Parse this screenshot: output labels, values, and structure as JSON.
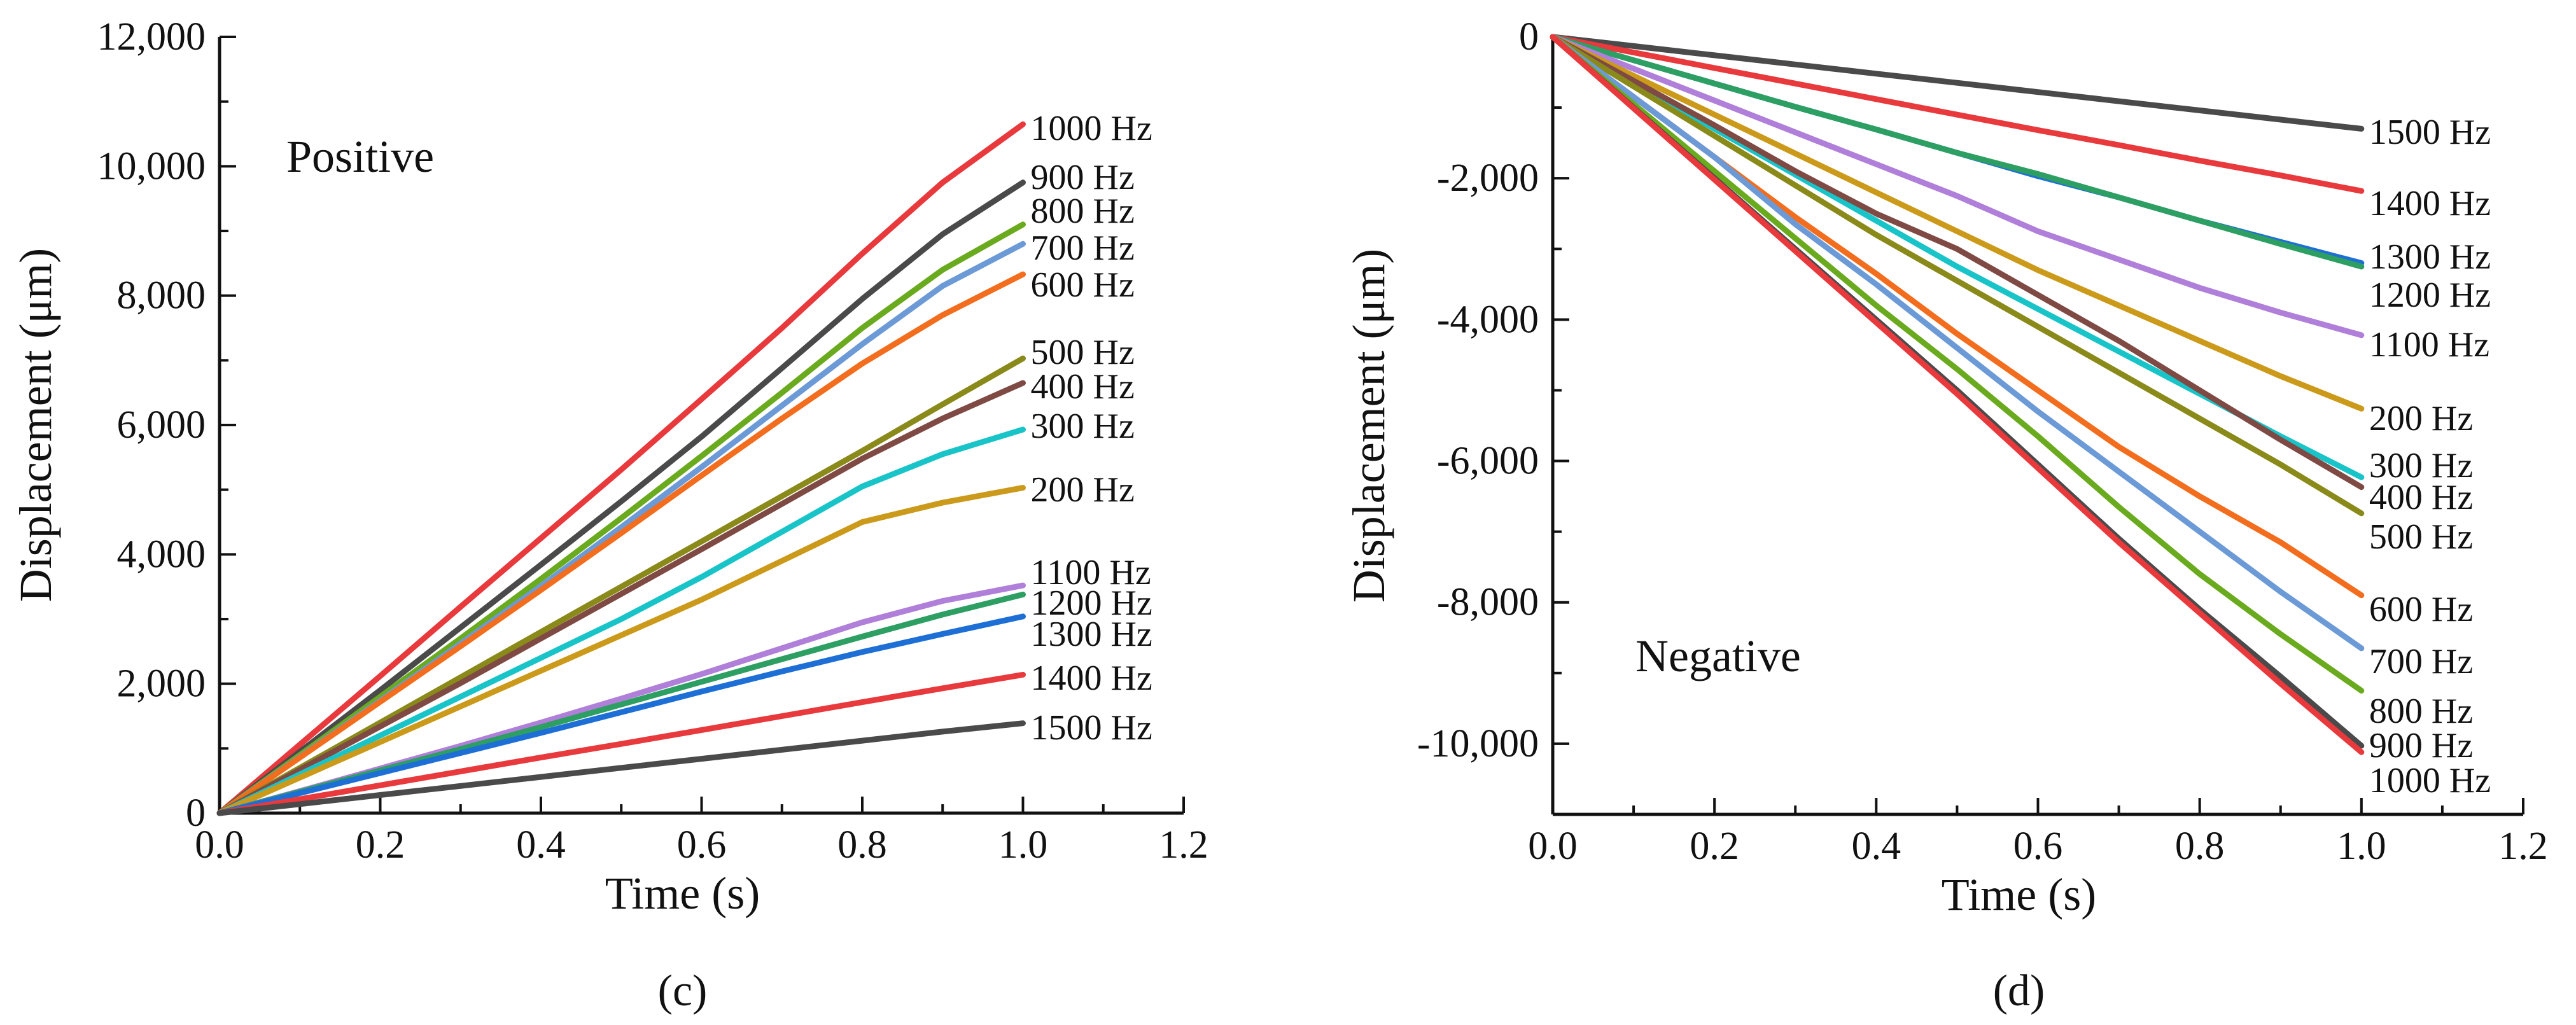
{
  "chart_data": [
    {
      "id": "c",
      "type": "line",
      "panel_label": "(c)",
      "title": "",
      "annotation": "Positive",
      "xlabel": "Time (s)",
      "ylabel": "Displacement (μm)",
      "xlim": [
        0,
        1.2
      ],
      "ylim": [
        0,
        12000
      ],
      "xticks": [
        0,
        0.2,
        0.4,
        0.6,
        0.8,
        1.0,
        1.2
      ],
      "xtick_labels": [
        "0.0",
        "0.2",
        "0.4",
        "0.6",
        "0.8",
        "1.0",
        "1.2"
      ],
      "yticks": [
        0,
        2000,
        4000,
        6000,
        8000,
        10000,
        12000
      ],
      "ytick_labels": [
        "0",
        "2,000",
        "4,000",
        "6,000",
        "8,000",
        "10,000",
        "12,000"
      ],
      "grid": false,
      "x": [
        0,
        0.1,
        0.2,
        0.3,
        0.4,
        0.5,
        0.6,
        0.7,
        0.8,
        0.9,
        1.0
      ],
      "series": [
        {
          "name": "1000 Hz",
          "color": "#e8393d",
          "end": 10650,
          "values": [
            0,
            1060,
            2120,
            3190,
            4250,
            5310,
            6400,
            7500,
            8650,
            9750,
            10650
          ]
        },
        {
          "name": "900 Hz",
          "color": "#4a4a4a",
          "end": 9750,
          "values": [
            0,
            950,
            1900,
            2870,
            3840,
            4820,
            5820,
            6880,
            7950,
            8950,
            9750
          ]
        },
        {
          "name": "800 Hz",
          "color": "#6aaa1e",
          "end": 9100,
          "values": [
            0,
            900,
            1800,
            2700,
            3620,
            4560,
            5520,
            6500,
            7500,
            8400,
            9100
          ]
        },
        {
          "name": "700 Hz",
          "color": "#6b9ad6",
          "end": 8800,
          "values": [
            0,
            870,
            1740,
            2620,
            3510,
            4420,
            5350,
            6300,
            7250,
            8150,
            8800
          ]
        },
        {
          "name": "600 Hz",
          "color": "#f26d1d",
          "end": 8330,
          "values": [
            0,
            860,
            1720,
            2580,
            3450,
            4330,
            5220,
            6100,
            6950,
            7700,
            8330
          ]
        },
        {
          "name": "500 Hz",
          "color": "#8a8a1a",
          "end": 7030,
          "values": [
            0,
            700,
            1400,
            2100,
            2800,
            3500,
            4200,
            4900,
            5600,
            6320,
            7030
          ]
        },
        {
          "name": "400 Hz",
          "color": "#7e4a43",
          "end": 6650,
          "values": [
            0,
            670,
            1340,
            2010,
            2700,
            3390,
            4080,
            4780,
            5480,
            6100,
            6650
          ]
        },
        {
          "name": "300 Hz",
          "color": "#19c4c8",
          "end": 5930,
          "values": [
            0,
            600,
            1200,
            1800,
            2400,
            3000,
            3650,
            4350,
            5050,
            5550,
            5930
          ]
        },
        {
          "name": "200 Hz",
          "color": "#cc9a1a",
          "end": 5030,
          "values": [
            0,
            550,
            1100,
            1650,
            2200,
            2750,
            3300,
            3900,
            4500,
            4800,
            5030
          ]
        },
        {
          "name": "1100 Hz",
          "color": "#b07fd9",
          "end": 3520,
          "values": [
            0,
            340,
            690,
            1040,
            1400,
            1770,
            2150,
            2550,
            2950,
            3280,
            3520
          ]
        },
        {
          "name": "1200 Hz",
          "color": "#2e9f62",
          "end": 3380,
          "values": [
            0,
            330,
            660,
            990,
            1330,
            1680,
            2030,
            2380,
            2730,
            3070,
            3380
          ]
        },
        {
          "name": "1300 Hz",
          "color": "#1d6fd6",
          "end": 3040,
          "values": [
            0,
            310,
            620,
            930,
            1240,
            1560,
            1880,
            2190,
            2490,
            2770,
            3040
          ]
        },
        {
          "name": "1400 Hz",
          "color": "#e8393d",
          "end": 2140,
          "values": [
            0,
            215,
            430,
            645,
            860,
            1070,
            1285,
            1500,
            1715,
            1930,
            2140
          ]
        },
        {
          "name": "1500 Hz",
          "color": "#4a4a4a",
          "end": 1390,
          "values": [
            0,
            140,
            280,
            420,
            560,
            700,
            840,
            980,
            1120,
            1260,
            1390
          ]
        }
      ]
    },
    {
      "id": "d",
      "type": "line",
      "panel_label": "(d)",
      "title": "",
      "annotation": "Negative",
      "xlabel": "Time (s)",
      "ylabel": "Displacement (μm)",
      "xlim": [
        0,
        1.2
      ],
      "ylim": [
        -11000,
        0
      ],
      "xticks": [
        0,
        0.2,
        0.4,
        0.6,
        0.8,
        1.0,
        1.2
      ],
      "xtick_labels": [
        "0.0",
        "0.2",
        "0.4",
        "0.6",
        "0.8",
        "1.0",
        "1.2"
      ],
      "yticks": [
        -10000,
        -8000,
        -6000,
        -4000,
        -2000,
        0
      ],
      "ytick_labels": [
        "-10,000",
        "-8,000",
        "-6,000",
        "-4,000",
        "-2,000",
        "0"
      ],
      "grid": false,
      "x": [
        0,
        0.1,
        0.2,
        0.3,
        0.4,
        0.5,
        0.6,
        0.7,
        0.8,
        0.9,
        1.0
      ],
      "series": [
        {
          "name": "1500 Hz",
          "color": "#4a4a4a",
          "end": -1300,
          "values": [
            0,
            -130,
            -260,
            -390,
            -520,
            -650,
            -780,
            -910,
            -1040,
            -1170,
            -1300
          ]
        },
        {
          "name": "1400 Hz",
          "color": "#e8393d",
          "end": -2180,
          "values": [
            0,
            -220,
            -440,
            -660,
            -880,
            -1100,
            -1320,
            -1530,
            -1750,
            -1960,
            -2180
          ]
        },
        {
          "name": "1300 Hz",
          "color": "#1d6fd6",
          "end": -3200,
          "values": [
            0,
            -330,
            -660,
            -990,
            -1310,
            -1640,
            -1970,
            -2270,
            -2600,
            -2900,
            -3200
          ]
        },
        {
          "name": "1200 Hz",
          "color": "#2e9f62",
          "end": -3250,
          "values": [
            0,
            -330,
            -660,
            -990,
            -1310,
            -1640,
            -1940,
            -2270,
            -2600,
            -2930,
            -3250
          ]
        },
        {
          "name": "1100 Hz",
          "color": "#b07fd9",
          "end": -4220,
          "values": [
            0,
            -450,
            -900,
            -1350,
            -1800,
            -2250,
            -2750,
            -3150,
            -3550,
            -3900,
            -4220
          ]
        },
        {
          "name": "200 Hz",
          "color": "#cc9a1a",
          "end": -5260,
          "values": [
            0,
            -550,
            -1100,
            -1650,
            -2200,
            -2750,
            -3300,
            -3800,
            -4300,
            -4800,
            -5260
          ]
        },
        {
          "name": "300 Hz",
          "color": "#19c4c8",
          "end": -6230,
          "values": [
            0,
            -650,
            -1300,
            -1950,
            -2600,
            -3250,
            -3850,
            -4450,
            -5050,
            -5650,
            -6230
          ]
        },
        {
          "name": "400 Hz",
          "color": "#7e4a43",
          "end": -6370,
          "values": [
            0,
            -620,
            -1250,
            -1900,
            -2500,
            -3000,
            -3650,
            -4300,
            -5000,
            -5700,
            -6370
          ]
        },
        {
          "name": "500 Hz",
          "color": "#8a8a1a",
          "end": -6740,
          "values": [
            0,
            -700,
            -1400,
            -2100,
            -2800,
            -3450,
            -4100,
            -4750,
            -5400,
            -6050,
            -6740
          ]
        },
        {
          "name": "600 Hz",
          "color": "#f26d1d",
          "end": -7900,
          "values": [
            0,
            -850,
            -1700,
            -2550,
            -3350,
            -4200,
            -5000,
            -5800,
            -6500,
            -7150,
            -7900
          ]
        },
        {
          "name": "700 Hz",
          "color": "#6b9ad6",
          "end": -8650,
          "values": [
            0,
            -850,
            -1700,
            -2650,
            -3500,
            -4400,
            -5300,
            -6150,
            -7000,
            -7850,
            -8650
          ]
        },
        {
          "name": "800 Hz",
          "color": "#6aaa1e",
          "end": -9250,
          "values": [
            0,
            -950,
            -1900,
            -2850,
            -3800,
            -4700,
            -5650,
            -6650,
            -7600,
            -8450,
            -9250
          ]
        },
        {
          "name": "900 Hz",
          "color": "#4a4a4a",
          "end": -10030,
          "values": [
            0,
            -1000,
            -2000,
            -3000,
            -4000,
            -5000,
            -6050,
            -7100,
            -8100,
            -9050,
            -10030
          ]
        },
        {
          "name": "1000 Hz",
          "color": "#e8393d",
          "end": -10120,
          "values": [
            0,
            -1010,
            -2020,
            -3030,
            -4040,
            -5050,
            -6100,
            -7150,
            -8150,
            -9150,
            -10120
          ]
        }
      ]
    }
  ]
}
